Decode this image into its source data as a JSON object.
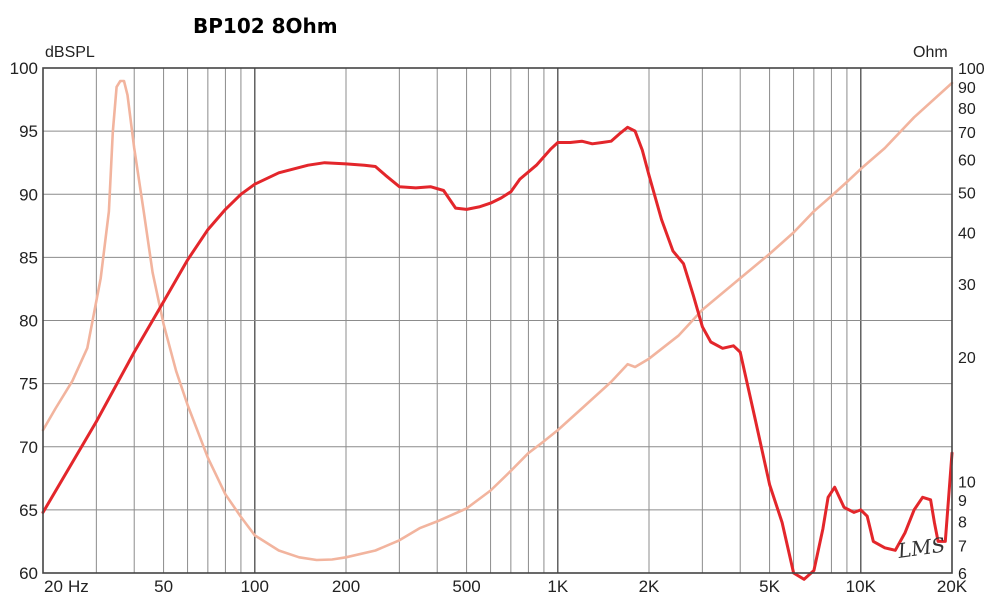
{
  "chart_data": {
    "type": "line",
    "title": "BP102 8Ohm",
    "ylabel_left": "dBSPL",
    "ylabel_right": "Ohm",
    "watermark": "LMS",
    "x_scale": "log",
    "xlim": [
      20,
      20000
    ],
    "ylim_left": [
      60,
      100
    ],
    "ylim_right": [
      6,
      100
    ],
    "y_right_scale": "log",
    "grid": true,
    "x_ticks": [
      {
        "value": 20,
        "label": "20"
      },
      {
        "value": 50,
        "label": "50"
      },
      {
        "value": 100,
        "label": "100"
      },
      {
        "value": 200,
        "label": "200"
      },
      {
        "value": 500,
        "label": "500"
      },
      {
        "value": 1000,
        "label": "1K"
      },
      {
        "value": 2000,
        "label": "2K"
      },
      {
        "value": 5000,
        "label": "5K"
      },
      {
        "value": 10000,
        "label": "10K"
      },
      {
        "value": 20000,
        "label": "20K"
      }
    ],
    "x_unit_label": "Hz",
    "y_left_ticks": [
      60,
      65,
      70,
      75,
      80,
      85,
      90,
      95,
      100
    ],
    "y_right_ticks": [
      6,
      7,
      8,
      9,
      10,
      20,
      30,
      40,
      50,
      60,
      70,
      80,
      90,
      100
    ],
    "series": [
      {
        "color": "#e3262b",
        "axis": "left",
        "points": [
          [
            20,
            64.8
          ],
          [
            30,
            72
          ],
          [
            40,
            77.5
          ],
          [
            50,
            81.5
          ],
          [
            60,
            84.8
          ],
          [
            70,
            87.2
          ],
          [
            80,
            88.8
          ],
          [
            90,
            90
          ],
          [
            100,
            90.8
          ],
          [
            120,
            91.7
          ],
          [
            150,
            92.3
          ],
          [
            170,
            92.5
          ],
          [
            200,
            92.4
          ],
          [
            230,
            92.3
          ],
          [
            250,
            92.2
          ],
          [
            270,
            91.5
          ],
          [
            300,
            90.6
          ],
          [
            340,
            90.5
          ],
          [
            380,
            90.6
          ],
          [
            420,
            90.3
          ],
          [
            460,
            88.9
          ],
          [
            500,
            88.8
          ],
          [
            550,
            89
          ],
          [
            600,
            89.3
          ],
          [
            650,
            89.7
          ],
          [
            700,
            90.2
          ],
          [
            750,
            91.2
          ],
          [
            850,
            92.3
          ],
          [
            950,
            93.6
          ],
          [
            1000,
            94.1
          ],
          [
            1100,
            94.1
          ],
          [
            1200,
            94.2
          ],
          [
            1300,
            94
          ],
          [
            1400,
            94.1
          ],
          [
            1500,
            94.2
          ],
          [
            1600,
            94.8
          ],
          [
            1700,
            95.3
          ],
          [
            1800,
            95
          ],
          [
            1900,
            93.5
          ],
          [
            2000,
            91.5
          ],
          [
            2200,
            88
          ],
          [
            2400,
            85.5
          ],
          [
            2600,
            84.5
          ],
          [
            2800,
            82
          ],
          [
            3000,
            79.5
          ],
          [
            3200,
            78.3
          ],
          [
            3500,
            77.8
          ],
          [
            3800,
            78
          ],
          [
            4000,
            77.5
          ],
          [
            4500,
            72
          ],
          [
            5000,
            67
          ],
          [
            5500,
            64
          ],
          [
            6000,
            60
          ],
          [
            6500,
            59.5
          ],
          [
            7000,
            60.2
          ],
          [
            7500,
            63.5
          ],
          [
            7800,
            66
          ],
          [
            8200,
            66.8
          ],
          [
            8800,
            65.2
          ],
          [
            9500,
            64.8
          ],
          [
            10000,
            65
          ],
          [
            10500,
            64.5
          ],
          [
            11000,
            62.5
          ],
          [
            12000,
            62
          ],
          [
            13000,
            61.8
          ],
          [
            14000,
            63.2
          ],
          [
            15000,
            65
          ],
          [
            16000,
            66
          ],
          [
            17000,
            65.8
          ],
          [
            17500,
            64
          ],
          [
            18000,
            62.5
          ],
          [
            19000,
            62.5
          ],
          [
            20000,
            69.5
          ]
        ]
      },
      {
        "color": "#f2b49e",
        "axis": "right",
        "points": [
          [
            20,
            13.3
          ],
          [
            22,
            15
          ],
          [
            25,
            17.5
          ],
          [
            28,
            21
          ],
          [
            31,
            31
          ],
          [
            33,
            45
          ],
          [
            34,
            70
          ],
          [
            35,
            90
          ],
          [
            36,
            93
          ],
          [
            37,
            93
          ],
          [
            38,
            86
          ],
          [
            40,
            64
          ],
          [
            43,
            45
          ],
          [
            46,
            32
          ],
          [
            50,
            24
          ],
          [
            55,
            18.5
          ],
          [
            60,
            15.3
          ],
          [
            70,
            11.4
          ],
          [
            80,
            9.3
          ],
          [
            90,
            8.2
          ],
          [
            100,
            7.4
          ],
          [
            120,
            6.8
          ],
          [
            140,
            6.55
          ],
          [
            160,
            6.45
          ],
          [
            180,
            6.47
          ],
          [
            200,
            6.55
          ],
          [
            250,
            6.8
          ],
          [
            300,
            7.2
          ],
          [
            350,
            7.7
          ],
          [
            400,
            8
          ],
          [
            500,
            8.6
          ],
          [
            600,
            9.5
          ],
          [
            700,
            10.6
          ],
          [
            800,
            11.7
          ],
          [
            900,
            12.5
          ],
          [
            1000,
            13.3
          ],
          [
            1200,
            15
          ],
          [
            1500,
            17.4
          ],
          [
            1700,
            19.2
          ],
          [
            1800,
            18.9
          ],
          [
            2000,
            19.8
          ],
          [
            2500,
            22.5
          ],
          [
            3000,
            26
          ],
          [
            4000,
            31
          ],
          [
            5000,
            35.5
          ],
          [
            6000,
            40
          ],
          [
            7000,
            45
          ],
          [
            8000,
            49
          ],
          [
            9000,
            53
          ],
          [
            10000,
            57
          ],
          [
            12000,
            64
          ],
          [
            15000,
            76
          ],
          [
            20000,
            92
          ]
        ]
      }
    ]
  }
}
